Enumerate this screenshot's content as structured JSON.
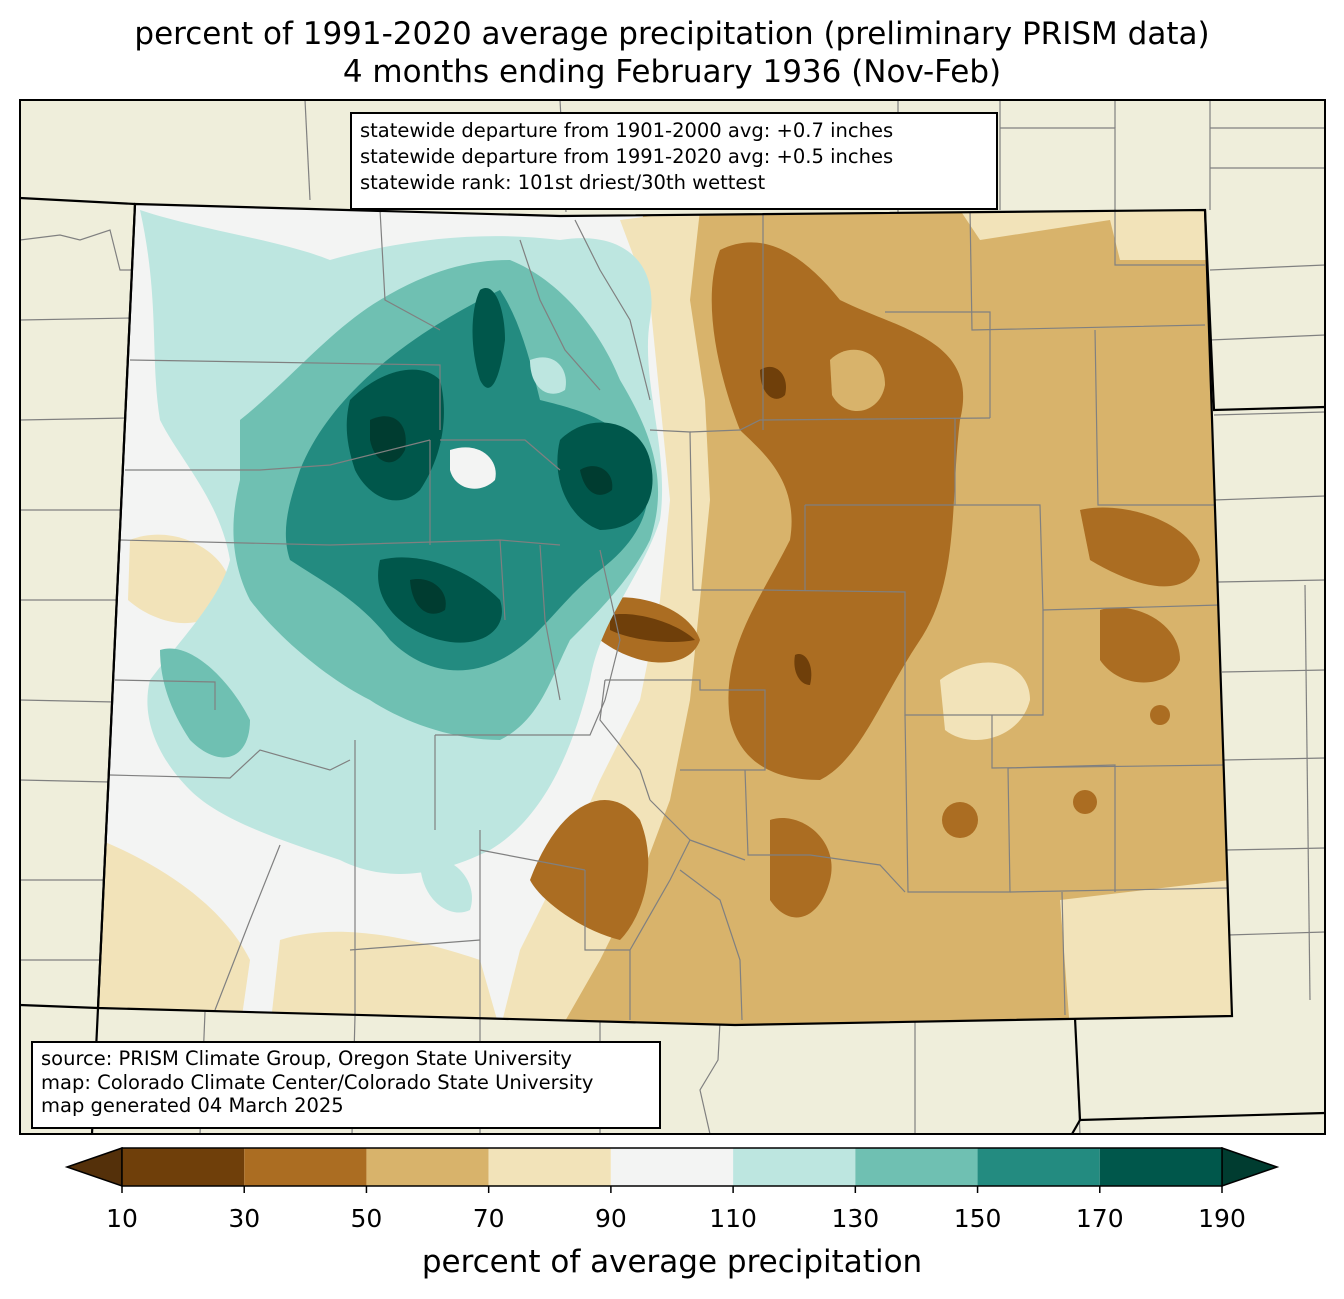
{
  "title": {
    "line1": "percent of 1991-2020 average precipitation (preliminary PRISM data)",
    "line2": "4 months ending February 1936 (Nov-Feb)"
  },
  "stats": {
    "line1": "statewide departure from 1901-2000 avg: +0.7 inches",
    "line2": "statewide departure from 1991-2020 avg: +0.5 inches",
    "line3": "statewide rank: 101st driest/30th wettest"
  },
  "source": {
    "line1": "source: PRISM Climate Group, Oregon State University",
    "line2": "map: Colorado Climate Center/Colorado State University",
    "line3": "map generated 04 March 2025"
  },
  "colorbar": {
    "label": "percent of average precipitation",
    "ticks": [
      "10",
      "30",
      "50",
      "70",
      "90",
      "110",
      "130",
      "150",
      "170",
      "190"
    ],
    "under_color": "#54300a",
    "over_color": "#003c30",
    "bins": [
      {
        "min": 10,
        "max": 30,
        "color": "#6f3f0a"
      },
      {
        "min": 30,
        "max": 50,
        "color": "#ab6d22"
      },
      {
        "min": 50,
        "max": 70,
        "color": "#d8b36b"
      },
      {
        "min": 70,
        "max": 90,
        "color": "#f2e3b9"
      },
      {
        "min": 90,
        "max": 110,
        "color": "#f3f4f3"
      },
      {
        "min": 110,
        "max": 130,
        "color": "#bde6e0"
      },
      {
        "min": 130,
        "max": 150,
        "color": "#6fc0b2"
      },
      {
        "min": 150,
        "max": 170,
        "color": "#238b80"
      },
      {
        "min": 170,
        "max": 190,
        "color": "#00574b"
      }
    ]
  },
  "map": {
    "land_color": "#efeedb",
    "county_line_color": "#808080",
    "state_line_color": "#000000"
  }
}
